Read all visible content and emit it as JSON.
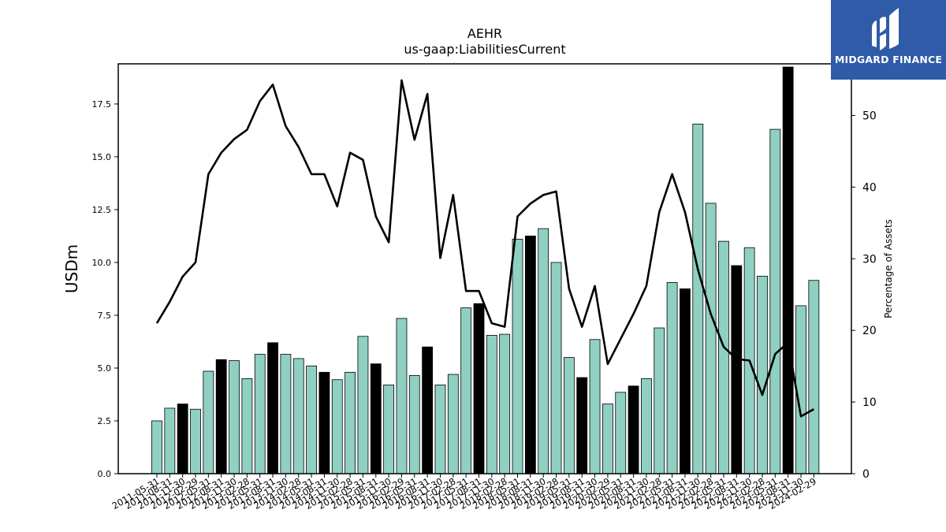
{
  "chart_data": {
    "type": "bar+line",
    "title": "AEHR",
    "subtitle": "us-gaap:LiabilitiesCurrent",
    "ylabel": "USDm",
    "y2label": "Percentage of Assets",
    "ylim": [
      0,
      19.4
    ],
    "y2lim": [
      0,
      57.2
    ],
    "yticks": [
      "0.0",
      "2.5",
      "5.0",
      "7.5",
      "10.0",
      "12.5",
      "15.0",
      "17.5"
    ],
    "y2ticks": [
      "0",
      "10",
      "20",
      "30",
      "40",
      "50"
    ],
    "categories": [
      "2011-05-31",
      "2011-08-31",
      "2011-11-30",
      "2012-02-29",
      "2012-05-31",
      "2012-08-31",
      "2012-11-30",
      "2013-02-28",
      "2013-05-31",
      "2013-08-31",
      "2013-11-30",
      "2014-02-28",
      "2014-05-31",
      "2014-08-31",
      "2014-11-30",
      "2015-02-28",
      "2015-05-31",
      "2015-08-31",
      "2015-11-30",
      "2016-02-29",
      "2016-05-31",
      "2016-08-31",
      "2016-11-30",
      "2017-02-28",
      "2017-05-31",
      "2017-08-31",
      "2017-11-30",
      "2018-02-28",
      "2018-05-31",
      "2018-08-31",
      "2018-11-30",
      "2019-02-28",
      "2019-05-31",
      "2019-08-31",
      "2019-11-30",
      "2020-02-29",
      "2020-05-31",
      "2020-08-31",
      "2020-11-30",
      "2021-02-28",
      "2021-05-31",
      "2021-08-31",
      "2021-11-30",
      "2022-02-28",
      "2022-05-31",
      "2022-08-31",
      "2022-11-30",
      "2023-02-28",
      "2023-05-31",
      "2023-08-31",
      "2023-11-30",
      "2024-02-29"
    ],
    "bars": {
      "name": "USDm",
      "values": [
        2.5,
        3.1,
        3.3,
        3.05,
        4.85,
        5.4,
        5.35,
        4.5,
        5.65,
        6.2,
        5.65,
        5.45,
        5.1,
        4.8,
        4.45,
        4.8,
        6.5,
        5.2,
        4.2,
        7.35,
        4.65,
        6.0,
        4.2,
        4.7,
        7.85,
        8.05,
        6.55,
        6.6,
        11.1,
        11.25,
        11.6,
        10.0,
        5.5,
        4.55,
        6.35,
        3.3,
        3.85,
        4.15,
        4.5,
        6.9,
        9.05,
        8.75,
        16.55,
        12.8,
        11.0,
        9.85,
        10.7,
        9.35,
        16.3,
        19.25,
        7.95,
        9.15
      ],
      "highlight_color": "#000000",
      "color": "#8fd0c2",
      "highlight_categories": [
        "2011-11-30",
        "2012-08-31",
        "2013-08-31",
        "2014-08-31",
        "2015-08-31",
        "2016-08-31",
        "2017-08-31",
        "2018-08-31",
        "2019-08-31",
        "2020-08-31",
        "2021-08-31",
        "2022-08-31",
        "2023-08-31"
      ]
    },
    "line": {
      "name": "Percentage of Assets",
      "color": "#000000",
      "values": [
        21.0,
        24.0,
        27.5,
        29.5,
        41.8,
        44.8,
        46.7,
        48.0,
        52.0,
        54.3,
        48.5,
        45.6,
        41.8,
        41.8,
        37.3,
        44.8,
        43.8,
        35.9,
        32.3,
        54.9,
        46.6,
        53.0,
        30.1,
        38.9,
        25.5,
        25.5,
        21.0,
        20.5,
        35.9,
        37.7,
        38.9,
        39.4,
        25.8,
        20.5,
        26.2,
        15.3,
        18.8,
        22.3,
        26.2,
        36.5,
        41.8,
        36.5,
        28.5,
        22.3,
        17.7,
        16.0,
        15.8,
        11.0,
        16.7,
        18.3,
        8.0,
        9.0
      ]
    }
  },
  "logo": {
    "text": "MIDGARD FINANCE",
    "bg_color": "#2f5ba8"
  }
}
